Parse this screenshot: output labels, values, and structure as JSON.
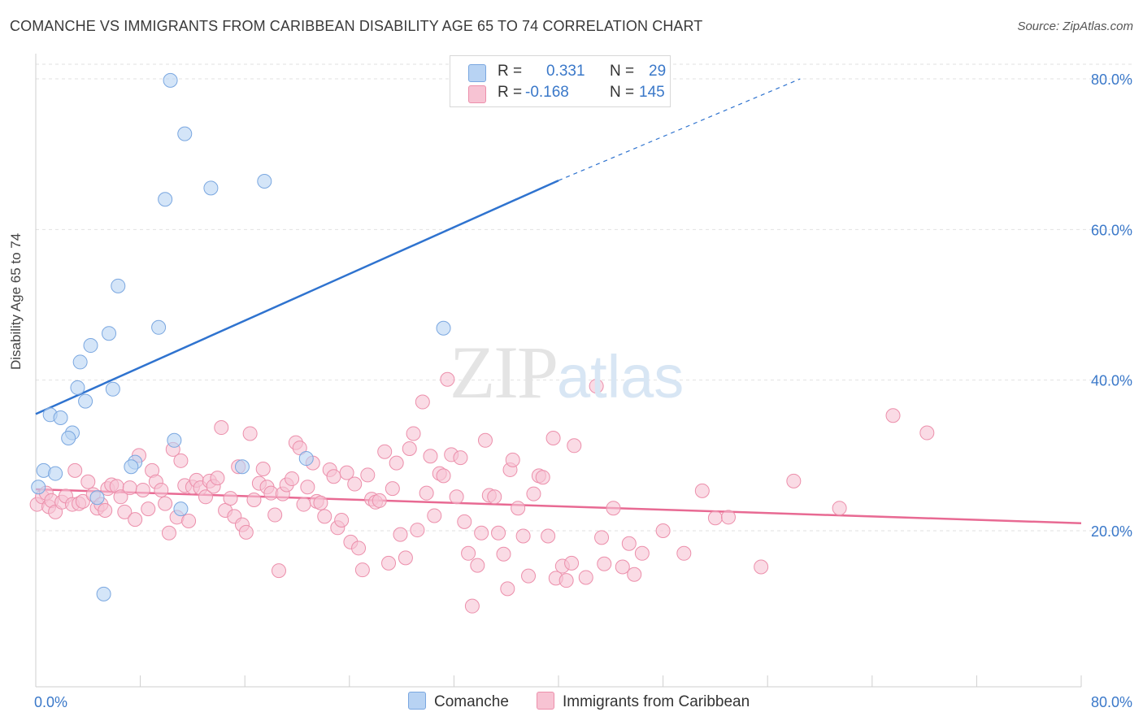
{
  "title": "COMANCHE VS IMMIGRANTS FROM CARIBBEAN DISABILITY AGE 65 TO 74 CORRELATION CHART",
  "source": "Source: ZipAtlas.com",
  "watermark": {
    "zip": "ZIP",
    "atlas": "atlas"
  },
  "legend": {
    "rows": [
      {
        "r_label": "R =",
        "r_value": "0.331",
        "n_label": "N =",
        "n_value": "29"
      },
      {
        "r_label": "R =",
        "r_value": "-0.168",
        "n_label": "N =",
        "n_value": "145"
      }
    ]
  },
  "colors": {
    "comanche_fill": "#b8d3f3",
    "comanche_stroke": "#7aa7e0",
    "comanche_line": "#2f73cf",
    "caribbean_fill": "#f7c3d3",
    "caribbean_stroke": "#ec8fab",
    "caribbean_line": "#e86a93",
    "tick_text": "#3a78c9",
    "grid": "#e2e2e2"
  },
  "chart_data": {
    "type": "scatter",
    "title": "COMANCHE VS IMMIGRANTS FROM CARIBBEAN DISABILITY AGE 65 TO 74 CORRELATION CHART",
    "xlabel": "",
    "ylabel": "Disability Age 65 to 74",
    "xlim": [
      0,
      80
    ],
    "ylim": [
      0,
      82
    ],
    "x_tick_labels": [
      "0.0%",
      "80.0%"
    ],
    "y_ticks": [
      20,
      40,
      60,
      80
    ],
    "y_tick_labels": [
      "20.0%",
      "40.0%",
      "60.0%",
      "80.0%"
    ],
    "grid": true,
    "legend_position": "bottom",
    "series": [
      {
        "name": "Comanche",
        "r": 0.331,
        "n": 29,
        "trend": {
          "x0": 0,
          "y0": 35.5,
          "x1": 40,
          "y1": 66.5,
          "dash_to_x": 58.5,
          "dash_to_y": 80
        },
        "points": [
          [
            10.3,
            79.8
          ],
          [
            11.4,
            72.7
          ],
          [
            13.4,
            65.5
          ],
          [
            17.5,
            66.4
          ],
          [
            9.9,
            64.0
          ],
          [
            6.3,
            52.5
          ],
          [
            9.4,
            47.0
          ],
          [
            31.2,
            46.9
          ],
          [
            5.6,
            46.2
          ],
          [
            4.2,
            44.6
          ],
          [
            3.4,
            42.4
          ],
          [
            3.2,
            39.0
          ],
          [
            5.9,
            38.8
          ],
          [
            3.8,
            37.2
          ],
          [
            1.1,
            35.4
          ],
          [
            1.9,
            35.0
          ],
          [
            2.8,
            33.0
          ],
          [
            2.5,
            32.3
          ],
          [
            10.6,
            32.0
          ],
          [
            20.7,
            29.6
          ],
          [
            7.6,
            29.1
          ],
          [
            7.3,
            28.5
          ],
          [
            15.8,
            28.5
          ],
          [
            0.6,
            28.0
          ],
          [
            1.5,
            27.6
          ],
          [
            0.2,
            25.8
          ],
          [
            4.7,
            24.4
          ],
          [
            11.1,
            22.9
          ],
          [
            5.2,
            11.6
          ]
        ]
      },
      {
        "name": "Immigrants from Caribbean",
        "r": -0.168,
        "n": 145,
        "trend": {
          "x0": 0,
          "y0": 25.5,
          "x1": 80,
          "y1": 21.0
        },
        "points": [
          [
            0.1,
            23.5
          ],
          [
            0.5,
            24.5
          ],
          [
            0.8,
            25.0
          ],
          [
            1.0,
            23.2
          ],
          [
            1.2,
            24.0
          ],
          [
            1.5,
            22.5
          ],
          [
            2.0,
            23.8
          ],
          [
            2.3,
            24.6
          ],
          [
            2.8,
            23.5
          ],
          [
            3.0,
            28.0
          ],
          [
            3.3,
            23.6
          ],
          [
            3.6,
            23.9
          ],
          [
            4.0,
            26.5
          ],
          [
            4.4,
            24.8
          ],
          [
            4.7,
            23.0
          ],
          [
            5.0,
            23.5
          ],
          [
            5.3,
            22.7
          ],
          [
            5.5,
            25.6
          ],
          [
            5.8,
            26.1
          ],
          [
            6.2,
            25.9
          ],
          [
            6.5,
            24.5
          ],
          [
            6.8,
            22.5
          ],
          [
            7.2,
            25.7
          ],
          [
            7.6,
            21.5
          ],
          [
            7.9,
            30.0
          ],
          [
            8.2,
            25.4
          ],
          [
            8.6,
            22.9
          ],
          [
            8.9,
            28.0
          ],
          [
            9.2,
            26.5
          ],
          [
            9.6,
            25.4
          ],
          [
            9.9,
            23.6
          ],
          [
            10.2,
            19.7
          ],
          [
            10.5,
            30.8
          ],
          [
            10.8,
            21.8
          ],
          [
            11.1,
            29.3
          ],
          [
            11.4,
            26.0
          ],
          [
            11.7,
            21.3
          ],
          [
            12.0,
            25.8
          ],
          [
            12.3,
            26.7
          ],
          [
            12.6,
            25.7
          ],
          [
            13.0,
            24.5
          ],
          [
            13.3,
            26.6
          ],
          [
            13.6,
            25.9
          ],
          [
            13.9,
            27.0
          ],
          [
            14.2,
            33.7
          ],
          [
            14.5,
            22.7
          ],
          [
            14.9,
            24.3
          ],
          [
            15.2,
            21.9
          ],
          [
            15.5,
            28.5
          ],
          [
            15.8,
            20.8
          ],
          [
            16.1,
            19.8
          ],
          [
            16.4,
            32.9
          ],
          [
            16.7,
            24.1
          ],
          [
            17.1,
            26.3
          ],
          [
            17.4,
            28.2
          ],
          [
            17.7,
            25.8
          ],
          [
            18.0,
            25.0
          ],
          [
            18.3,
            22.1
          ],
          [
            18.6,
            14.7
          ],
          [
            18.9,
            24.9
          ],
          [
            19.2,
            26.1
          ],
          [
            19.6,
            26.9
          ],
          [
            19.9,
            31.7
          ],
          [
            20.2,
            31.0
          ],
          [
            20.5,
            23.5
          ],
          [
            20.8,
            25.8
          ],
          [
            21.2,
            29.0
          ],
          [
            21.5,
            23.9
          ],
          [
            21.8,
            23.7
          ],
          [
            22.1,
            21.9
          ],
          [
            22.5,
            28.1
          ],
          [
            22.8,
            27.2
          ],
          [
            23.1,
            20.4
          ],
          [
            23.4,
            21.4
          ],
          [
            23.8,
            27.7
          ],
          [
            24.1,
            18.5
          ],
          [
            24.4,
            26.2
          ],
          [
            24.7,
            17.7
          ],
          [
            25.0,
            14.8
          ],
          [
            25.4,
            27.4
          ],
          [
            25.7,
            24.2
          ],
          [
            26.0,
            23.8
          ],
          [
            26.3,
            24.0
          ],
          [
            26.7,
            30.5
          ],
          [
            27.0,
            15.7
          ],
          [
            27.3,
            25.6
          ],
          [
            27.6,
            29.0
          ],
          [
            27.9,
            19.5
          ],
          [
            28.3,
            16.4
          ],
          [
            28.6,
            30.9
          ],
          [
            28.9,
            32.9
          ],
          [
            29.2,
            20.1
          ],
          [
            29.6,
            37.1
          ],
          [
            29.9,
            25.0
          ],
          [
            30.2,
            29.9
          ],
          [
            30.5,
            22.0
          ],
          [
            30.9,
            27.6
          ],
          [
            31.2,
            27.3
          ],
          [
            31.5,
            40.1
          ],
          [
            31.8,
            30.1
          ],
          [
            32.2,
            24.5
          ],
          [
            32.5,
            29.7
          ],
          [
            32.8,
            21.2
          ],
          [
            33.1,
            17.0
          ],
          [
            33.4,
            10.0
          ],
          [
            33.8,
            15.4
          ],
          [
            34.1,
            19.7
          ],
          [
            34.4,
            32.0
          ],
          [
            34.7,
            24.7
          ],
          [
            35.1,
            24.5
          ],
          [
            35.4,
            19.7
          ],
          [
            35.8,
            16.9
          ],
          [
            36.1,
            12.3
          ],
          [
            36.3,
            28.1
          ],
          [
            36.5,
            29.4
          ],
          [
            36.9,
            23.0
          ],
          [
            37.3,
            19.3
          ],
          [
            37.7,
            14.0
          ],
          [
            38.1,
            24.9
          ],
          [
            38.5,
            27.3
          ],
          [
            38.8,
            27.1
          ],
          [
            39.2,
            19.3
          ],
          [
            39.6,
            32.3
          ],
          [
            39.8,
            13.7
          ],
          [
            40.3,
            15.3
          ],
          [
            40.6,
            13.4
          ],
          [
            41.0,
            15.7
          ],
          [
            41.2,
            31.3
          ],
          [
            42.1,
            13.8
          ],
          [
            42.9,
            39.2
          ],
          [
            43.3,
            19.1
          ],
          [
            43.5,
            15.6
          ],
          [
            44.2,
            23.0
          ],
          [
            44.9,
            15.2
          ],
          [
            45.4,
            18.3
          ],
          [
            45.8,
            14.2
          ],
          [
            46.4,
            17.0
          ],
          [
            48.0,
            20.0
          ],
          [
            49.6,
            17.0
          ],
          [
            51.0,
            25.3
          ],
          [
            52.0,
            21.7
          ],
          [
            53.0,
            21.8
          ],
          [
            55.5,
            15.2
          ],
          [
            58.0,
            26.6
          ],
          [
            61.5,
            23.0
          ],
          [
            65.6,
            35.3
          ],
          [
            68.2,
            33.0
          ]
        ]
      }
    ]
  },
  "bottom_legend": {
    "items": [
      "Comanche",
      "Immigrants from Caribbean"
    ]
  }
}
